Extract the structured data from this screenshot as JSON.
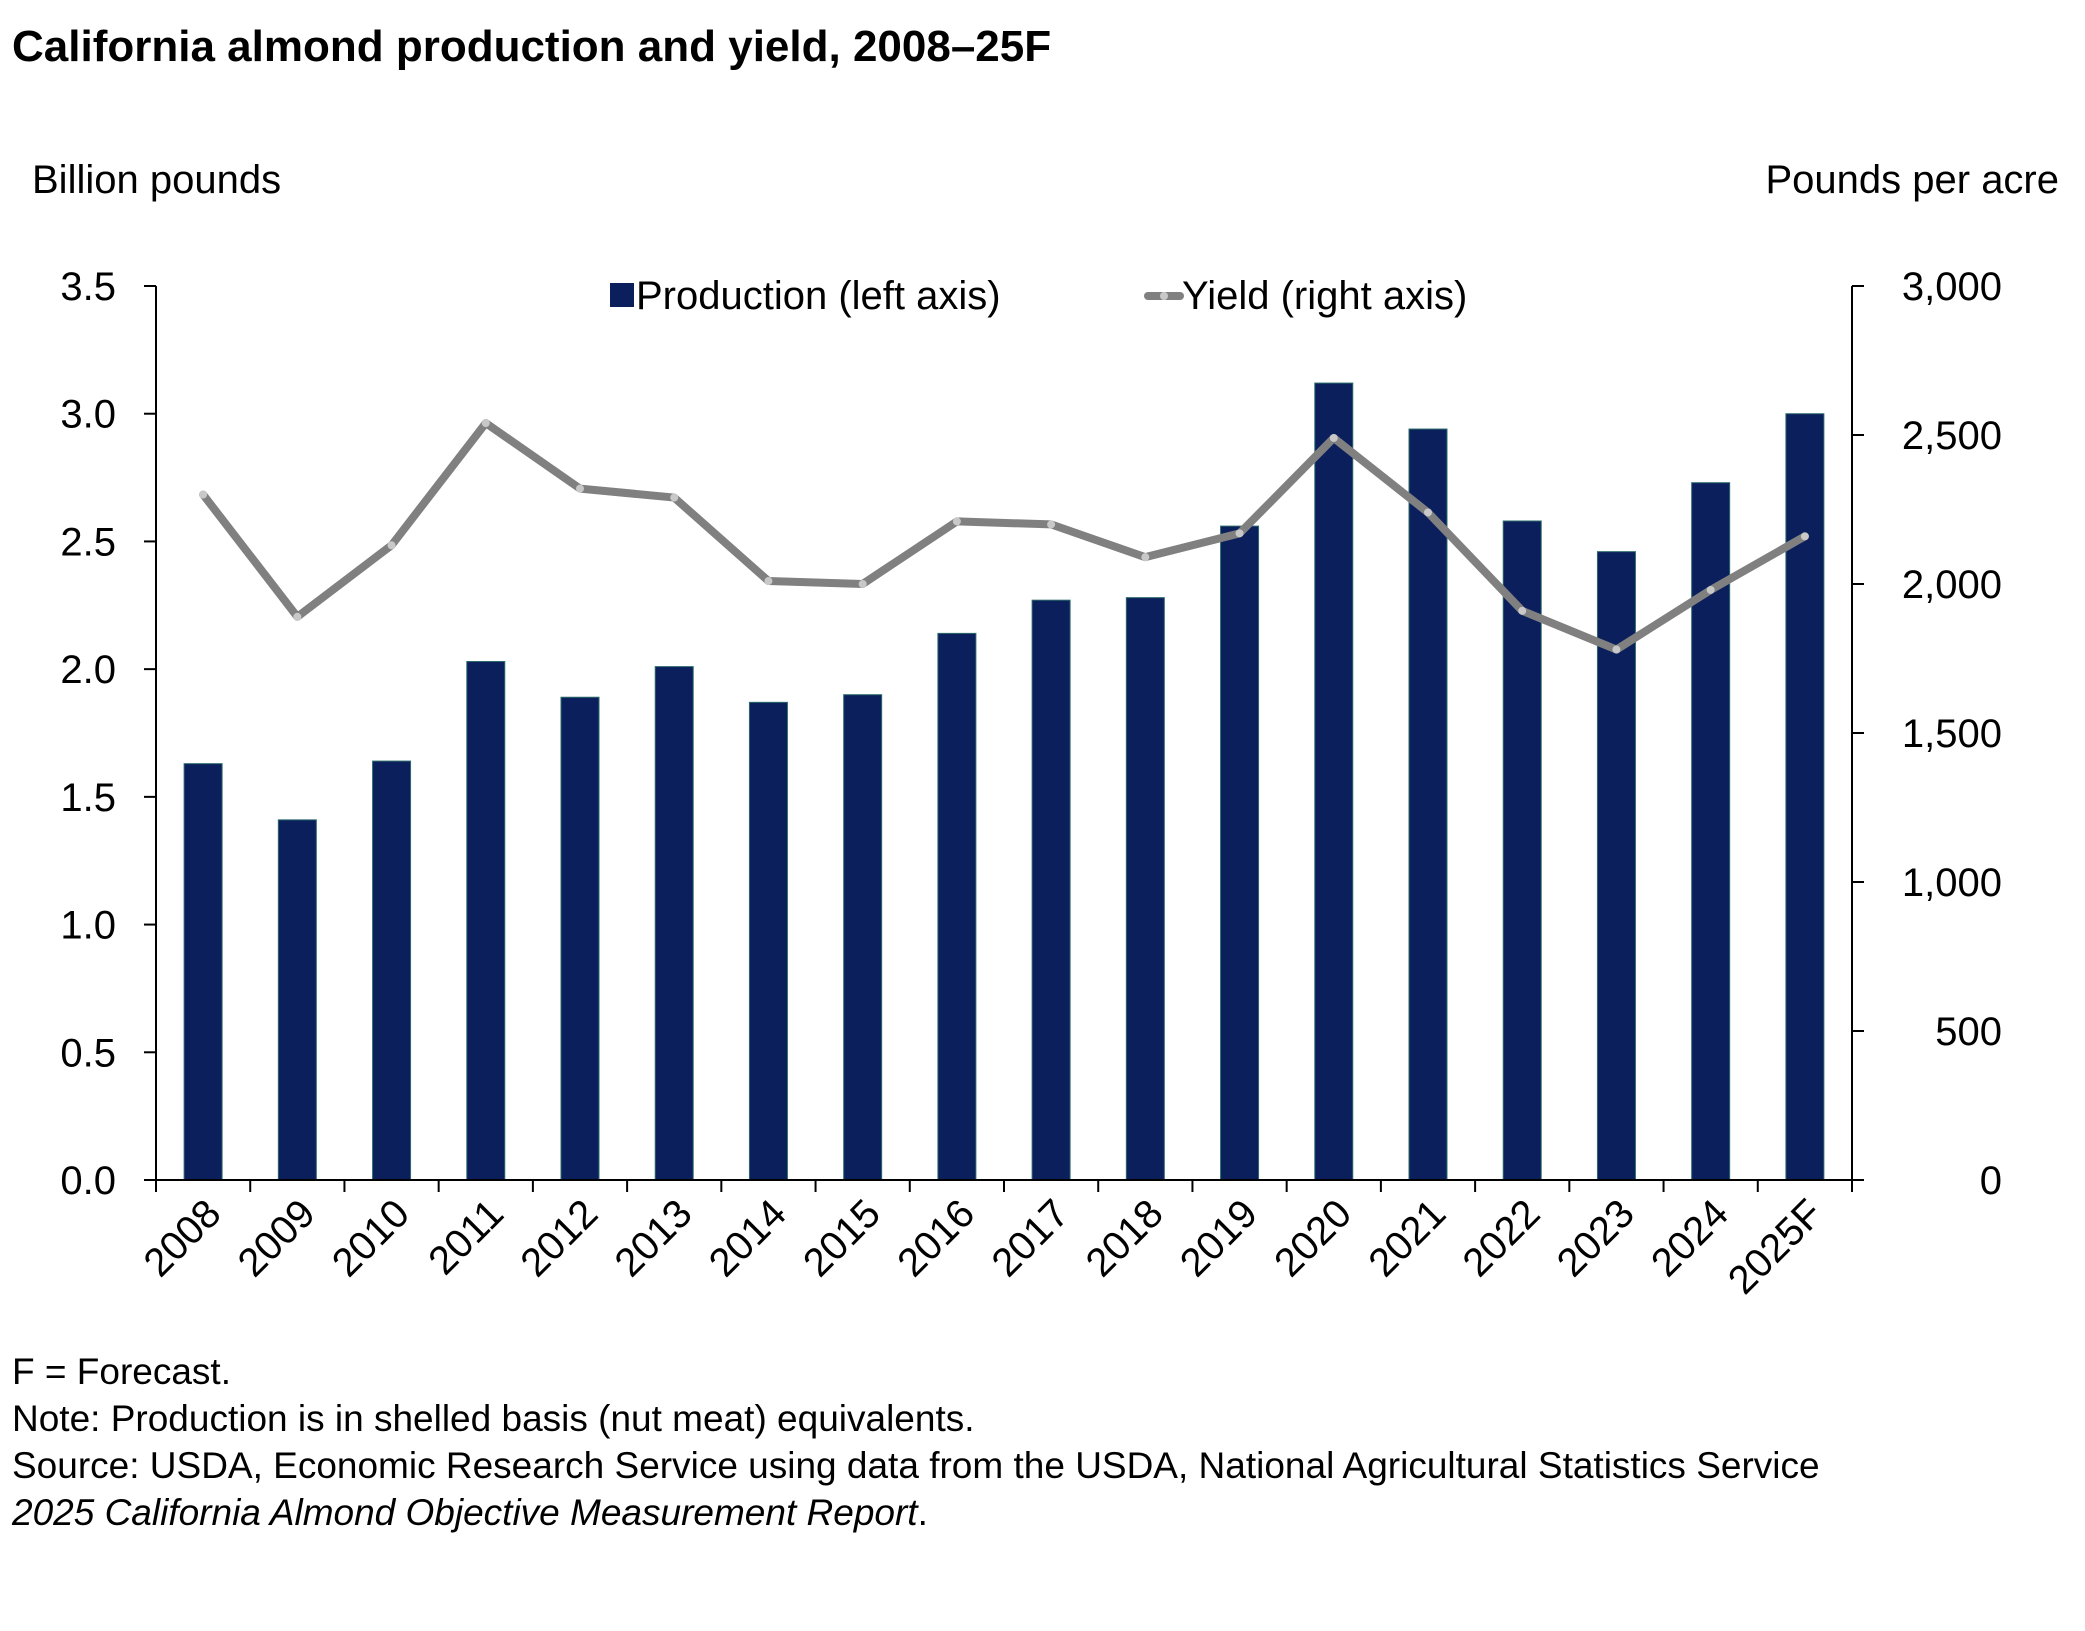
{
  "header": {
    "title": "California almond production and yield, 2008–25F",
    "left_axis_unit": "Billion pounds",
    "right_axis_unit": "Pounds per acre"
  },
  "colors": {
    "bars": "#0b1f5c",
    "line": "#808080",
    "line_marker": "#c8c8c8",
    "axis": "#000000"
  },
  "chart_data": {
    "type": "bar",
    "categories": [
      "2008",
      "2009",
      "2010",
      "2011",
      "2012",
      "2013",
      "2014",
      "2015",
      "2016",
      "2017",
      "2018",
      "2019",
      "2020",
      "2021",
      "2022",
      "2023",
      "2024",
      "2025F"
    ],
    "series": [
      {
        "name": "Production (left axis)",
        "type": "bar",
        "axis": "left",
        "values": [
          1.63,
          1.41,
          1.64,
          2.03,
          1.89,
          2.01,
          1.87,
          1.9,
          2.14,
          2.27,
          2.28,
          2.56,
          3.12,
          2.94,
          2.58,
          2.46,
          2.73,
          3.0
        ]
      },
      {
        "name": "Yield (right axis)",
        "type": "line",
        "axis": "right",
        "values": [
          2300,
          1890,
          2130,
          2540,
          2320,
          2290,
          2010,
          2000,
          2210,
          2200,
          2090,
          2170,
          2490,
          2240,
          1910,
          1780,
          1980,
          2160
        ]
      }
    ],
    "left_axis": {
      "min": 0,
      "max": 3.5,
      "ticks": [
        "0.0",
        "0.5",
        "1.0",
        "1.5",
        "2.0",
        "2.5",
        "3.0",
        "3.5"
      ]
    },
    "right_axis": {
      "min": 0,
      "max": 3000,
      "ticks": [
        "0",
        "500",
        "1,000",
        "1,500",
        "2,000",
        "2,500",
        "3,000"
      ]
    },
    "legend_position": "top-center"
  },
  "notes": {
    "forecast": "F = Forecast.",
    "note": "Note: Production is in shelled basis (nut meat) equivalents.",
    "source": "Source: USDA, Economic Research Service using data from the USDA, National Agricultural Statistics Service",
    "source_report": "2025 California Almond Objective Measurement Report",
    "source_end": "."
  }
}
